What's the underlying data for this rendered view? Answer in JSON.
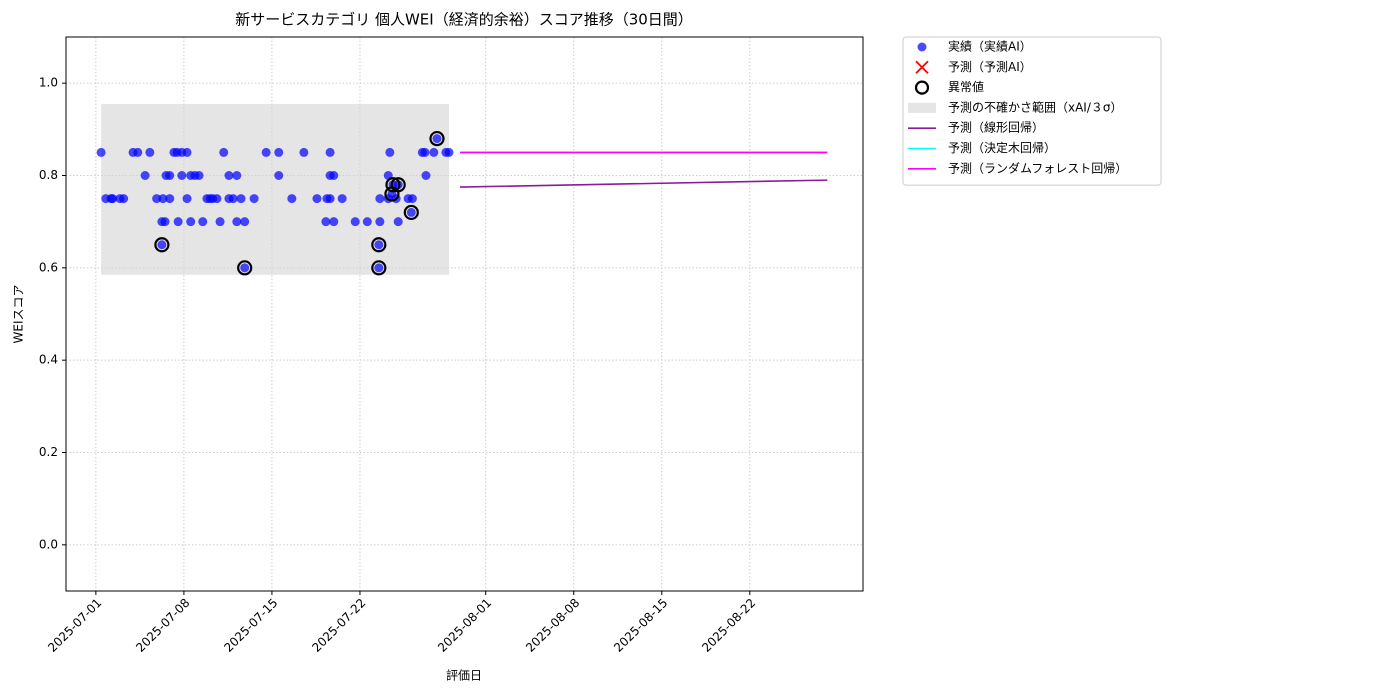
{
  "chart_data": {
    "type": "scatter",
    "title": "新サービスカテゴリ 個人WEI（経済的余裕）スコア推移（30日間）",
    "xlabel": "評価日",
    "ylabel": "WEIスコア",
    "xlim": [
      "2025-06-28T15:00",
      "2025-08-31T00:00"
    ],
    "xticks": [
      "2025-07-01",
      "2025-07-08",
      "2025-07-15",
      "2025-07-22",
      "2025-08-01",
      "2025-08-08",
      "2025-08-15",
      "2025-08-22"
    ],
    "ylim": [
      -0.1,
      1.1
    ],
    "yticks": [
      {
        "value": 0,
        "label": "0.0"
      },
      0.2,
      0.4,
      0.6,
      0.8,
      {
        "value": 1,
        "label": "1.0"
      }
    ],
    "grid": true,
    "legend": "outside upper right",
    "series": [
      {
        "name": "予測の不確かさ範囲（xAI/３σ）",
        "type": "band",
        "color": "#d3d3d3",
        "x": [
          "2025-07-01T10:00",
          "2025-07-29T02:00"
        ],
        "y_low": [
          0.585,
          0.585
        ],
        "y_high": [
          0.955,
          0.955
        ]
      },
      {
        "name": "実績（実績AI）",
        "type": "scatter",
        "color": "#0000ff",
        "x": [
          "2025-07-01T10:00",
          "2025-07-01T19:00",
          "2025-07-02T05:00",
          "2025-07-02T08:00",
          "2025-07-02T22:00",
          "2025-07-03T05:00",
          "2025-07-03T23:00",
          "2025-07-04T08:00",
          "2025-07-04T22:00",
          "2025-07-05T07:00",
          "2025-07-05T20:00",
          "2025-07-06T06:00",
          "2025-07-06T06:00",
          "2025-07-06T08:00",
          "2025-07-06T12:00",
          "2025-07-06T14:00",
          "2025-07-06T21:00",
          "2025-07-06T21:00",
          "2025-07-07T05:00",
          "2025-07-07T11:00",
          "2025-07-07T13:00",
          "2025-07-07T20:00",
          "2025-07-07T20:00",
          "2025-07-08T06:00",
          "2025-07-08T06:00",
          "2025-07-08T13:00",
          "2025-07-08T13:00",
          "2025-07-08T21:00",
          "2025-07-09T05:00",
          "2025-07-09T12:00",
          "2025-07-09T20:00",
          "2025-07-10T02:00",
          "2025-07-10T07:00",
          "2025-07-10T15:00",
          "2025-07-10T21:00",
          "2025-07-11T04:00",
          "2025-07-11T14:00",
          "2025-07-11T14:00",
          "2025-07-11T22:00",
          "2025-07-12T05:00",
          "2025-07-12T05:00",
          "2025-07-12T13:00",
          "2025-07-12T20:00",
          "2025-07-12T20:00",
          "2025-07-13T14:00",
          "2025-07-14T13:00",
          "2025-07-15T13:00",
          "2025-07-15T13:00",
          "2025-07-16T14:00",
          "2025-07-17T13:00",
          "2025-07-18T14:00",
          "2025-07-19T07:00",
          "2025-07-19T09:00",
          "2025-07-19T15:00",
          "2025-07-19T15:00",
          "2025-07-19T15:00",
          "2025-07-19T22:00",
          "2025-07-19T22:00",
          "2025-07-20T14:00",
          "2025-07-21T15:00",
          "2025-07-22T14:00",
          "2025-07-23T12:00",
          "2025-07-23T12:00",
          "2025-07-23T14:00",
          "2025-07-23T14:00",
          "2025-07-24T06:00",
          "2025-07-24T06:00",
          "2025-07-24T09:00",
          "2025-07-24T13:00",
          "2025-07-24T15:00",
          "2025-07-24T21:00",
          "2025-07-25T01:00",
          "2025-07-25T01:00",
          "2025-07-25T20:00",
          "2025-07-26T02:00",
          "2025-07-26T04:00",
          "2025-07-26T23:00",
          "2025-07-27T04:00",
          "2025-07-27T06:00",
          "2025-07-27T21:00",
          "2025-07-28T03:00",
          "2025-07-28T20:00",
          "2025-07-29T02:00"
        ],
        "values": [
          0.85,
          0.75,
          0.75,
          0.75,
          0.75,
          0.75,
          0.85,
          0.85,
          0.8,
          0.85,
          0.75,
          0.7,
          0.65,
          0.75,
          0.7,
          0.8,
          0.8,
          0.75,
          0.85,
          0.85,
          0.7,
          0.8,
          0.85,
          0.85,
          0.75,
          0.7,
          0.8,
          0.8,
          0.8,
          0.7,
          0.75,
          0.75,
          0.75,
          0.75,
          0.7,
          0.85,
          0.8,
          0.75,
          0.75,
          0.8,
          0.7,
          0.75,
          0.7,
          0.6,
          0.75,
          0.85,
          0.85,
          0.8,
          0.75,
          0.85,
          0.75,
          0.7,
          0.75,
          0.85,
          0.8,
          0.75,
          0.8,
          0.7,
          0.75,
          0.7,
          0.7,
          0.65,
          0.6,
          0.75,
          0.7,
          0.8,
          0.75,
          0.85,
          0.76,
          0.78,
          0.75,
          0.78,
          0.7,
          0.75,
          0.72,
          0.75,
          0.85,
          0.85,
          0.8,
          0.85,
          0.88,
          0.85,
          0.85
        ]
      },
      {
        "name": "予測（予測AI）",
        "type": "cross",
        "color": "#ff0000",
        "x": [],
        "values": []
      },
      {
        "name": "異常値",
        "type": "ring",
        "color": "#000000",
        "x": [
          "2025-07-06T06:00",
          "2025-07-12T20:00",
          "2025-07-23T12:00",
          "2025-07-23T12:00",
          "2025-07-24T13:00",
          "2025-07-24T15:00",
          "2025-07-25T01:00",
          "2025-07-26T02:00",
          "2025-07-28T03:00"
        ],
        "values": [
          0.65,
          0.6,
          0.65,
          0.6,
          0.76,
          0.78,
          0.78,
          0.72,
          0.88
        ]
      },
      {
        "name": "予測（線形回帰）",
        "type": "line",
        "color": "#8b1a9b",
        "x": [
          "2025-07-29T23:00",
          "2025-08-28T04:00"
        ],
        "values": [
          0.775,
          0.79
        ]
      },
      {
        "name": "予測（決定木回帰）",
        "type": "line",
        "color": "#00ffff",
        "x": [
          "2025-07-29T23:00",
          "2025-08-28T04:00"
        ],
        "values": [
          0.85,
          0.85
        ]
      },
      {
        "name": "予測（ランダムフォレスト回帰）",
        "type": "line",
        "color": "#ff00ff",
        "x": [
          "2025-07-29T23:00",
          "2025-08-28T04:00"
        ],
        "values": [
          0.85,
          0.85
        ]
      }
    ]
  }
}
